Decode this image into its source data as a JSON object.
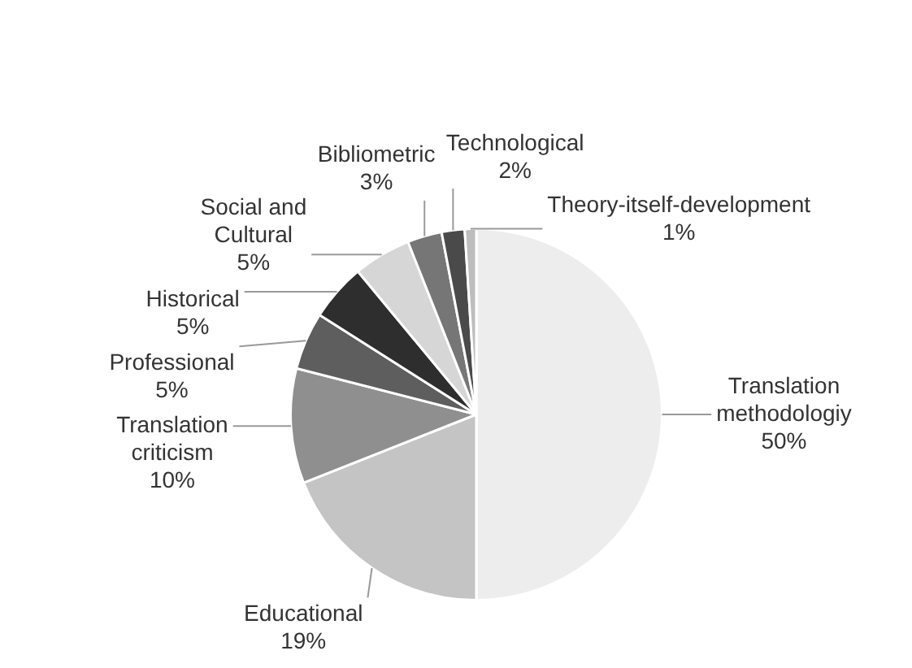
{
  "chart_data": {
    "type": "pie",
    "categories": [
      "Translation methodologiy",
      "Educational",
      "Translation criticism",
      "Professional",
      "Historical",
      "Social and Cultural",
      "Bibliometric",
      "Technological",
      "Theory-itself-development"
    ],
    "values": [
      50,
      19,
      10,
      5,
      5,
      5,
      3,
      2,
      1
    ],
    "value_labels": [
      "50%",
      "19%",
      "10%",
      "5%",
      "5%",
      "5%",
      "3%",
      "2%",
      "1%"
    ],
    "colors": [
      "#ededed",
      "#c4c4c4",
      "#8f8f8f",
      "#5e5e5e",
      "#2e2e2e",
      "#d6d6d6",
      "#767676",
      "#4a4a4a",
      "#bdbdbd"
    ],
    "legend": false
  }
}
